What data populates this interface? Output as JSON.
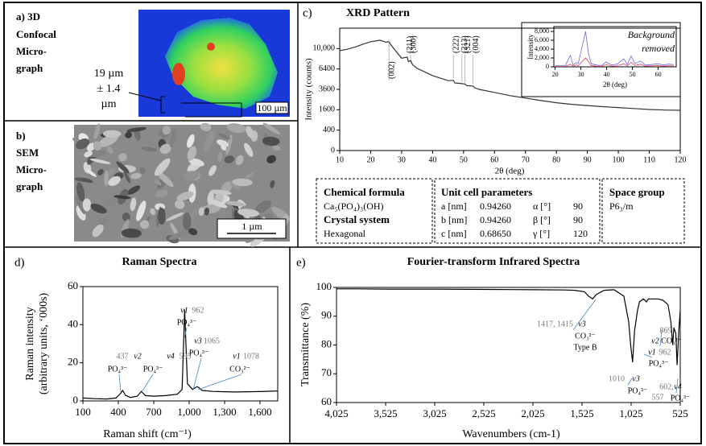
{
  "panel_a": {
    "title_lines": [
      "a) 3D",
      "Confocal",
      "Micro-",
      "graph"
    ],
    "thickness_lines": [
      "19 µm",
      "± 1.4",
      "µm"
    ],
    "scale_bar": "100 µm"
  },
  "panel_b": {
    "title_lines": [
      "b)",
      "SEM",
      "Micro-",
      "graph"
    ],
    "scale_bar": "1 µm"
  },
  "properties": {
    "chemical_formula_label": "Chemical formula",
    "chemical_formula": "Ca₅(PO₄)₃(OH)",
    "crystal_system_label": "Crystal system",
    "crystal_system": "Hexagonal",
    "unit_cell_label": "Unit cell parameters",
    "unit_cell_rows": [
      [
        "a [nm]",
        "0.94260",
        "α [°]",
        "90"
      ],
      [
        "b [nm]",
        "0.94260",
        "β [°]",
        "90"
      ],
      [
        "c [nm]",
        "0.68650",
        "γ [°]",
        "120"
      ]
    ],
    "space_group_label": "Space group",
    "space_group": "P6₃/m"
  },
  "chart_data": [
    {
      "type": "line",
      "panel": "c)",
      "title": "XRD Pattern",
      "xlabel": "2θ (deg)",
      "ylabel": "Intensity (counts)",
      "y_scale": "sqrt",
      "xlim": [
        10,
        120
      ],
      "ylim": [
        0,
        14400
      ],
      "xticks": [
        10,
        20,
        30,
        40,
        50,
        60,
        70,
        80,
        90,
        100,
        110,
        120
      ],
      "yticks": [
        0,
        400,
        1600,
        3600,
        6400,
        {
          "value": 10000,
          "label": "10,000"
        }
      ],
      "x": [
        10,
        12,
        15,
        18,
        20,
        23,
        25,
        25.9,
        26.5,
        28,
        30,
        31.8,
        32.2,
        32.9,
        33.5,
        35,
        40,
        45,
        46.7,
        47.2,
        49.5,
        50.5,
        51,
        53.1,
        53.6,
        55,
        60,
        65,
        70,
        75,
        80,
        85,
        90,
        95,
        100,
        105,
        110,
        115,
        120
      ],
      "series": [
        {
          "color": "#333333",
          "values": [
            9600,
            9800,
            10300,
            11000,
            11400,
            11700,
            11300,
            11400,
            10800,
            9600,
            8200,
            8400,
            7600,
            7800,
            7100,
            6500,
            5400,
            4700,
            4750,
            4400,
            4300,
            4250,
            4050,
            4000,
            3800,
            3600,
            3250,
            2900,
            2650,
            2400,
            2200,
            2050,
            1950,
            1850,
            1780,
            1700,
            1620,
            1580,
            1560
          ]
        }
      ],
      "peak_labels": [
        {
          "label": "(002)",
          "x": 25.9
        },
        {
          "label": "(211)",
          "x": 31.8
        },
        {
          "label": "(300)",
          "x": 32.9
        },
        {
          "label": "(222)",
          "x": 46.7
        },
        {
          "label": "(213)",
          "x": 49.5
        },
        {
          "label": "(321)",
          "x": 50.5
        },
        {
          "label": "(004)",
          "x": 53.1
        }
      ]
    },
    {
      "type": "line",
      "xlabel": "2θ (deg)",
      "ylabel": "Intensity",
      "annotation_lines": [
        "Background",
        "removed"
      ],
      "xlim": [
        19.5,
        67
      ],
      "ylim": [
        0,
        9100
      ],
      "xticks": [
        20,
        30,
        40,
        50,
        60
      ],
      "yticks": [
        0,
        {
          "value": 2000,
          "label": "2,000"
        },
        {
          "value": 4000,
          "label": "4,000"
        },
        {
          "value": 6000,
          "label": "6,000"
        },
        {
          "value": 8000,
          "label": "8,000"
        }
      ],
      "x": [
        20,
        22,
        24,
        25.9,
        27,
        28.1,
        29,
        31.8,
        32.9,
        34,
        36,
        38,
        39.8,
        42,
        44,
        46.7,
        48,
        49.5,
        51,
        53.1,
        55,
        57,
        60,
        62,
        64,
        66
      ],
      "series": [
        {
          "color": "#6a6ae0",
          "values": [
            300,
            200,
            350,
            2600,
            400,
            900,
            800,
            8000,
            3200,
            700,
            400,
            300,
            1100,
            400,
            600,
            1800,
            500,
            2400,
            700,
            1300,
            400,
            500,
            700,
            400,
            600,
            500
          ]
        },
        {
          "color": "#e0405a",
          "values": [
            100,
            100,
            100,
            600,
            150,
            400,
            300,
            2000,
            1200,
            300,
            150,
            100,
            500,
            150,
            200,
            700,
            200,
            1000,
            300,
            600,
            150,
            200,
            300,
            150,
            250,
            200
          ]
        }
      ]
    },
    {
      "type": "line",
      "panel": "d)",
      "title": "Raman Spectra",
      "xlabel": "Raman shift (cm⁻¹)",
      "ylabel_lines": [
        "Raman intensity",
        "(arbitrary units, ‘000s)"
      ],
      "xlim": [
        100,
        1750
      ],
      "ylim": [
        0,
        60
      ],
      "xticks": [
        100,
        400,
        700,
        {
          "value": 1000,
          "label": "1,000"
        },
        {
          "value": 1300,
          "label": "1,300"
        },
        {
          "value": 1600,
          "label": "1,600"
        }
      ],
      "yticks": [
        0,
        20,
        40,
        60
      ],
      "x": [
        100,
        200,
        300,
        380,
        420,
        437,
        460,
        500,
        560,
        595,
        630,
        700,
        800,
        900,
        940,
        962,
        985,
        1030,
        1065,
        1078,
        1110,
        1200,
        1300,
        1400,
        1500,
        1600,
        1700,
        1750
      ],
      "series": [
        {
          "color": "#000000",
          "values": [
            1.5,
            1.2,
            1,
            1.5,
            4,
            5.5,
            3,
            1.8,
            2.5,
            5,
            2.8,
            2.5,
            2.8,
            3.5,
            6,
            48,
            9,
            6,
            7.5,
            7.2,
            5.5,
            5,
            4.8,
            4.7,
            4.8,
            4.9,
            5.1,
            5.2
          ]
        }
      ],
      "annotations": [
        "437",
        "v2",
        "PO₄³⁻",
        "v4",
        "595",
        "PO₄³⁻",
        "v1",
        "962",
        "PO₄³⁻",
        "v3",
        "1065",
        "PO₄³⁻",
        "v1",
        "1078",
        "CO₃²⁻"
      ]
    },
    {
      "type": "line",
      "panel": "e)",
      "title": "Fourier-transform Infrared Spectra",
      "xlabel": "Wavenumbers (cm-1)",
      "ylabel": "Transmittance (%)",
      "xlim": [
        4025,
        525
      ],
      "ylim": [
        60,
        100
      ],
      "xticks": [
        {
          "value": 4025,
          "label": "4,025"
        },
        {
          "value": 3525,
          "label": "3,525"
        },
        {
          "value": 3025,
          "label": "3,025"
        },
        {
          "value": 2525,
          "label": "2,525"
        },
        {
          "value": 2025,
          "label": "2,025"
        },
        {
          "value": 1525,
          "label": "1,525"
        },
        {
          "value": 1025,
          "label": "1,025"
        },
        525
      ],
      "yticks": [
        60,
        70,
        80,
        90,
        100
      ],
      "x": [
        4025,
        3800,
        3525,
        3000,
        2500,
        2000,
        1700,
        1600,
        1500,
        1460,
        1417,
        1380,
        1300,
        1200,
        1100,
        1050,
        1030,
        1010,
        990,
        960,
        940,
        900,
        869,
        850,
        800,
        750,
        700,
        650,
        620,
        602,
        590,
        570,
        557,
        540,
        525
      ],
      "series": [
        {
          "color": "#000000",
          "values": [
            99.5,
            99.5,
            99.4,
            99.4,
            99.3,
            99.2,
            99.1,
            99,
            98.5,
            97,
            96,
            97.5,
            99,
            99.2,
            97,
            88,
            80,
            74,
            85,
            92,
            95,
            96,
            95,
            96,
            96,
            96,
            95.5,
            94,
            88,
            80,
            86,
            84,
            73,
            85,
            92
          ]
        }
      ],
      "annotations": [
        "1417, 1415",
        "v3",
        "CO₃²⁻",
        "Type B",
        "869",
        "v2",
        "CO₃²⁻",
        "v1",
        "962",
        "PO₄³⁻",
        "1010",
        "v3",
        "PO₄³⁻",
        "602,",
        "557",
        "v4",
        "PO₄³⁻"
      ]
    }
  ]
}
